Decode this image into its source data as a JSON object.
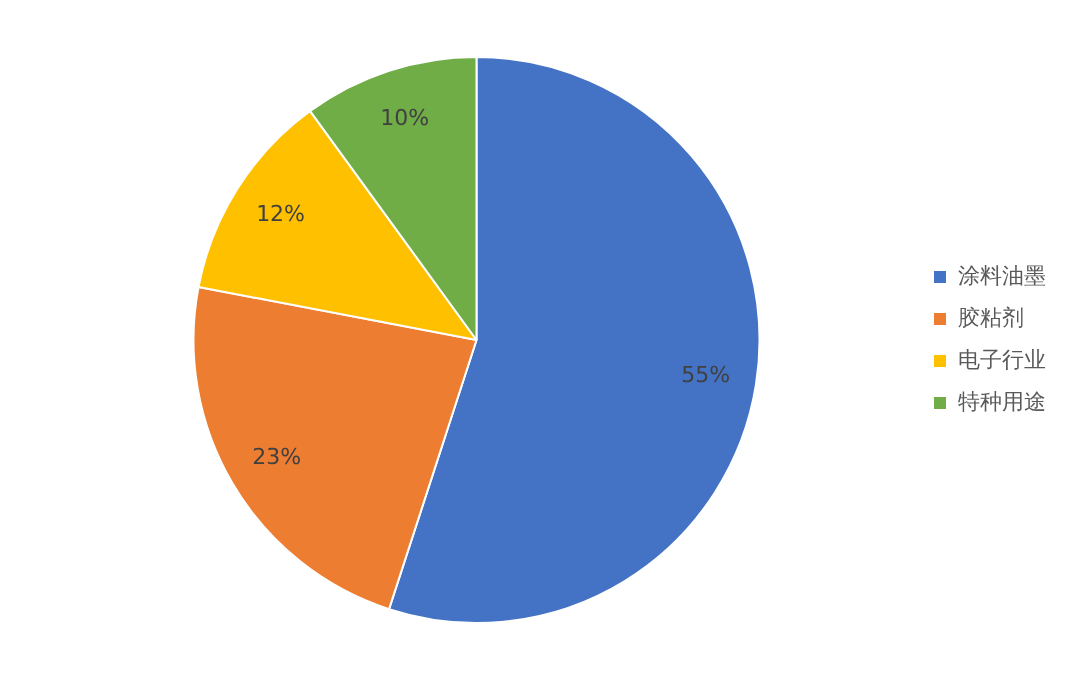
{
  "chart_data": {
    "type": "pie",
    "categories": [
      "涂料油墨",
      "胶粘剂",
      "电子行业",
      "特种用途"
    ],
    "values": [
      55,
      23,
      12,
      10
    ],
    "colors": [
      "#4472c4",
      "#ed7d31",
      "#ffc000",
      "#70ad47"
    ],
    "value_labels": [
      "55%",
      "23%",
      "12%",
      "10%"
    ],
    "legend": "right"
  }
}
